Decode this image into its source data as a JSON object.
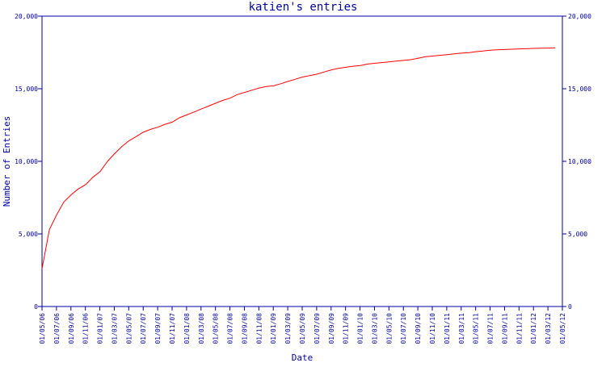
{
  "chart_data": {
    "type": "line",
    "title": "katien's entries",
    "xlabel": "Date",
    "ylabel": "Number of Entries",
    "ylim": [
      0,
      20000
    ],
    "grid": false,
    "legend": "none",
    "yticks": [
      0,
      5000,
      10000,
      15000,
      20000
    ],
    "ytick_labels": [
      "0",
      "5,000",
      "10,000",
      "15,000",
      "20,000"
    ],
    "xlim": [
      "2006-05-01",
      "2012-05-01"
    ],
    "xtick_labels": [
      "01/05/06",
      "01/07/06",
      "01/09/06",
      "01/11/06",
      "01/01/07",
      "01/03/07",
      "01/05/07",
      "01/07/07",
      "01/09/07",
      "01/11/07",
      "01/01/08",
      "01/03/08",
      "01/05/08",
      "01/07/08",
      "01/09/08",
      "01/11/08",
      "01/01/09",
      "01/03/09",
      "01/05/09",
      "01/07/09",
      "01/09/09",
      "01/11/09",
      "01/01/10",
      "01/03/10",
      "01/05/10",
      "01/07/10",
      "01/09/10",
      "01/11/10",
      "01/01/11",
      "01/03/11",
      "01/05/11",
      "01/07/11",
      "01/09/11",
      "01/11/11",
      "01/01/12",
      "01/03/12",
      "01/05/12"
    ],
    "series": [
      {
        "color": "#ff0000",
        "x": [
          "2006-05-01",
          "2006-06-01",
          "2006-07-01",
          "2006-08-01",
          "2006-09-01",
          "2006-10-01",
          "2006-11-01",
          "2006-12-01",
          "2007-01-01",
          "2007-02-01",
          "2007-03-01",
          "2007-04-01",
          "2007-05-01",
          "2007-06-01",
          "2007-07-01",
          "2007-08-01",
          "2007-09-01",
          "2007-10-01",
          "2007-11-01",
          "2007-12-01",
          "2008-01-01",
          "2008-02-01",
          "2008-03-01",
          "2008-04-01",
          "2008-05-01",
          "2008-06-01",
          "2008-07-01",
          "2008-08-01",
          "2008-09-01",
          "2008-10-01",
          "2008-11-01",
          "2008-12-01",
          "2009-01-01",
          "2009-02-01",
          "2009-03-01",
          "2009-04-01",
          "2009-05-01",
          "2009-06-01",
          "2009-07-01",
          "2009-08-01",
          "2009-09-01",
          "2009-10-01",
          "2009-11-01",
          "2009-12-01",
          "2010-01-01",
          "2010-02-01",
          "2010-03-01",
          "2010-04-01",
          "2010-05-01",
          "2010-06-01",
          "2010-07-01",
          "2010-08-01",
          "2010-09-01",
          "2010-10-01",
          "2010-11-01",
          "2010-12-01",
          "2011-01-01",
          "2011-02-01",
          "2011-03-01",
          "2011-04-01",
          "2011-05-01",
          "2011-06-01",
          "2011-07-01",
          "2011-08-01",
          "2011-09-01",
          "2011-10-01",
          "2011-11-01",
          "2011-12-01",
          "2012-01-01",
          "2012-02-01",
          "2012-03-01",
          "2012-04-01"
        ],
        "values": [
          2600,
          5300,
          6300,
          7200,
          7700,
          8100,
          8400,
          8900,
          9300,
          10000,
          10500,
          11000,
          11400,
          11700,
          12000,
          12200,
          12350,
          12550,
          12700,
          13000,
          13200,
          13400,
          13600,
          13800,
          14000,
          14200,
          14350,
          14600,
          14750,
          14900,
          15050,
          15150,
          15200,
          15350,
          15500,
          15650,
          15800,
          15900,
          16000,
          16150,
          16300,
          16400,
          16480,
          16550,
          16600,
          16700,
          16750,
          16800,
          16850,
          16900,
          16950,
          17000,
          17100,
          17200,
          17250,
          17300,
          17350,
          17400,
          17450,
          17480,
          17550,
          17600,
          17650,
          17680,
          17700,
          17720,
          17740,
          17760,
          17780,
          17790,
          17800,
          17810
        ]
      }
    ]
  }
}
